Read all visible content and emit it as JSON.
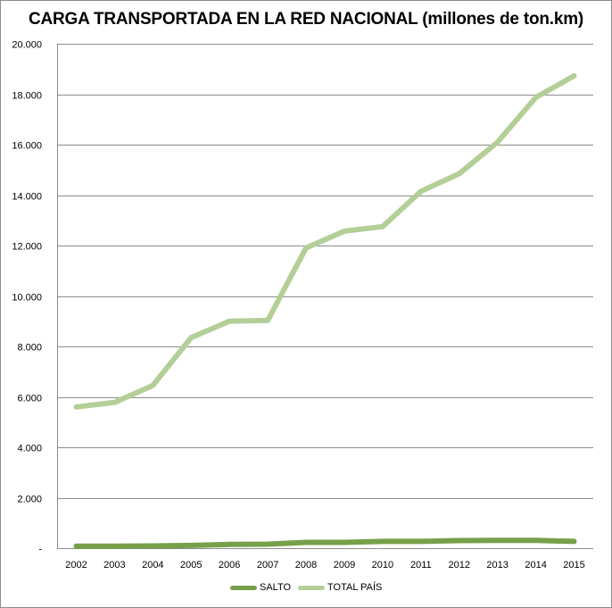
{
  "chart_data": {
    "type": "line",
    "title": "CARGA TRANSPORTADA EN LA RED NACIONAL (millones de ton.km)",
    "xlabel": "",
    "ylabel": "",
    "ylim": [
      0,
      20000
    ],
    "grid": true,
    "legend_position": "bottom",
    "categories": [
      "2002",
      "2003",
      "2004",
      "2005",
      "2006",
      "2007",
      "2008",
      "2009",
      "2010",
      "2011",
      "2012",
      "2013",
      "2014",
      "2015"
    ],
    "y_ticks": [
      0,
      2000,
      4000,
      6000,
      8000,
      10000,
      12000,
      14000,
      16000,
      18000,
      20000
    ],
    "y_tick_labels": [
      "-",
      "2.000",
      "4.000",
      "6.000",
      "8.000",
      "10.000",
      "12.000",
      "14.000",
      "16.000",
      "18.000",
      "20.000"
    ],
    "series": [
      {
        "name": "SALTO",
        "color": "#77a04a",
        "values": [
          80,
          80,
          90,
          110,
          150,
          160,
          230,
          230,
          270,
          270,
          300,
          310,
          310,
          270
        ]
      },
      {
        "name": "TOTAL PAÍS",
        "color": "#b3cf97",
        "values": [
          5600,
          5780,
          6450,
          8350,
          9000,
          9030,
          11900,
          12570,
          12750,
          14150,
          14850,
          16100,
          17870,
          18730
        ]
      }
    ]
  }
}
